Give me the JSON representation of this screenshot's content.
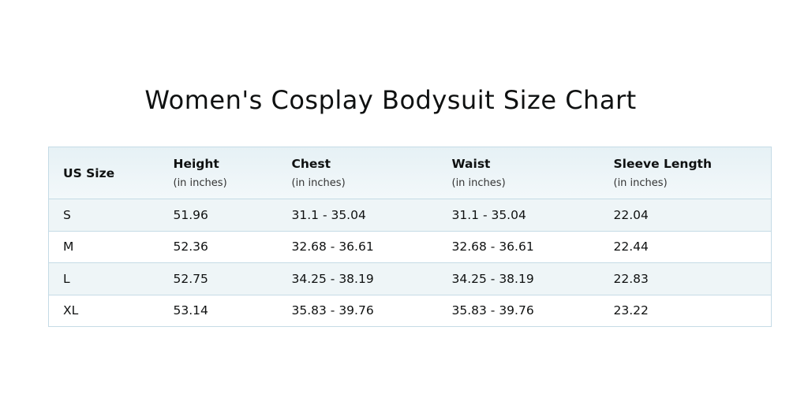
{
  "title": "Women's Cosplay Bodysuit Size Chart",
  "table": {
    "headers": [
      {
        "label": "US Size"
      },
      {
        "label": "Height",
        "sub": "(in inches)"
      },
      {
        "label": "Chest",
        "sub": "(in inches)"
      },
      {
        "label": "Waist",
        "sub": "(in inches)"
      },
      {
        "label": "Sleeve Length",
        "sub": "(in inches)"
      }
    ],
    "rows": [
      [
        "S",
        "51.96",
        "31.1 - 35.04",
        "31.1 - 35.04",
        "22.04"
      ],
      [
        "M",
        "52.36",
        "32.68 - 36.61",
        "32.68 - 36.61",
        "22.44"
      ],
      [
        "L",
        "52.75",
        "34.25 - 38.19",
        "34.25 - 38.19",
        "22.83"
      ],
      [
        "XL",
        "53.14",
        "35.83 - 39.76",
        "35.83 - 39.76",
        "23.22"
      ]
    ]
  }
}
